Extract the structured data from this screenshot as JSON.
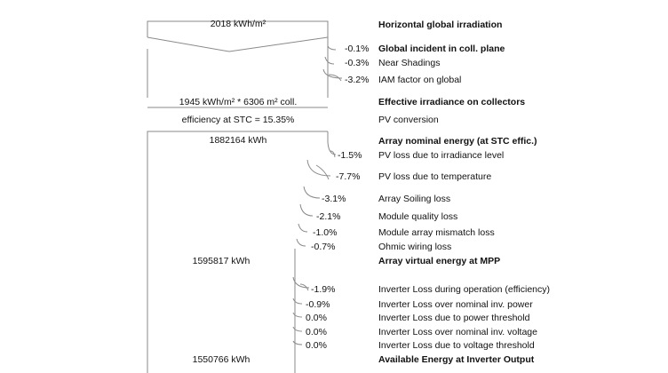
{
  "header": {
    "irradiation_value": "2018 kWh/m²",
    "irradiation_label": "Horizontal global irradiation"
  },
  "irradiance_losses": [
    {
      "pct": "-0.1%",
      "label": "Global incident in coll. plane"
    },
    {
      "pct": "-0.3%",
      "label": "Near Shadings"
    },
    {
      "pct": "-3.2%",
      "label": "IAM factor on global"
    }
  ],
  "effective": {
    "value": "1945 kWh/m² * 6306 m² coll.",
    "label": "Effective irradiance on collectors"
  },
  "conversion": {
    "value": "efficiency at STC = 15.35%",
    "label": "PV conversion"
  },
  "nominal": {
    "value": "1882164 kWh",
    "label": "Array nominal energy (at STC effic.)"
  },
  "array_losses": [
    {
      "pct": "-1.5%",
      "label": "PV loss due to irradiance level"
    },
    {
      "pct": "-7.7%",
      "label": "PV loss due to temperature"
    },
    {
      "pct": "-3.1%",
      "label": "Array Soiling loss"
    },
    {
      "pct": "-2.1%",
      "label": "Module quality loss"
    },
    {
      "pct": "-1.0%",
      "label": "Module array mismatch loss"
    },
    {
      "pct": "-0.7%",
      "label": "Ohmic wiring loss"
    }
  ],
  "mpp": {
    "value": "1595817 kWh",
    "label": "Array virtual energy at MPP"
  },
  "inverter_losses": [
    {
      "pct": "-1.9%",
      "label": "Inverter Loss during operation (efficiency)"
    },
    {
      "pct": "-0.9%",
      "label": "Inverter Loss over nominal inv. power"
    },
    {
      "pct": "0.0%",
      "label": "Inverter Loss due to power threshold"
    },
    {
      "pct": "0.0%",
      "label": "Inverter Loss over nominal inv. voltage"
    },
    {
      "pct": "0.0%",
      "label": "Inverter Loss due to voltage threshold"
    }
  ],
  "output": {
    "value": "1550766 kWh",
    "label": "Available Energy at Inverter Output"
  }
}
